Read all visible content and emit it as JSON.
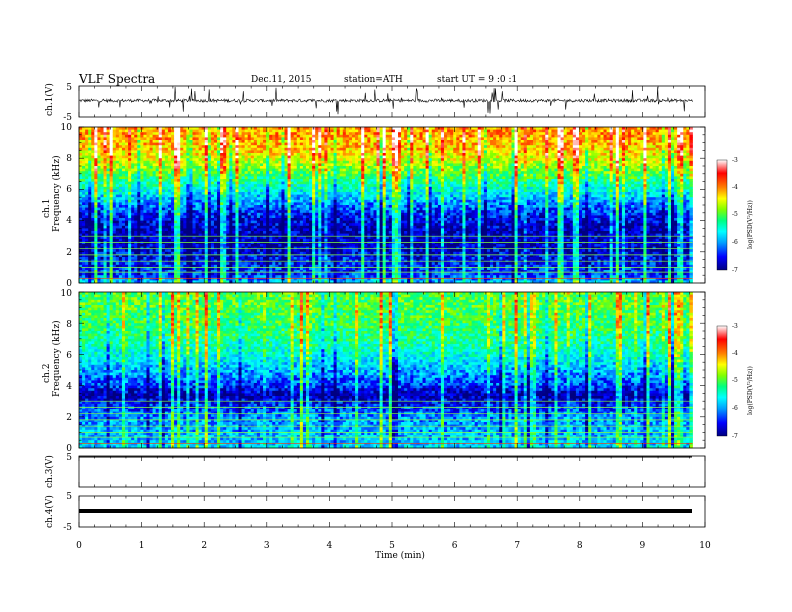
{
  "header": {
    "title": "VLF Spectra",
    "date": "Dec.11, 2015",
    "station": "station=ATH",
    "start_ut": "start UT =  9 :0 :1"
  },
  "chart_data": [
    {
      "type": "line",
      "panel": "ch1-waveform",
      "ylabel": "ch.1(V)",
      "ylim": [
        -5,
        5
      ],
      "y_ticks": [
        "5",
        "-5"
      ],
      "xlim": [
        0,
        10
      ],
      "data_end": 9.8,
      "baseline": 0.3,
      "description_values": {
        "typical_amplitude_V": 1.0,
        "peak_amplitude_V": 4.5
      }
    },
    {
      "type": "heatmap",
      "panel": "ch1-spectrogram",
      "ylabel": "ch.1",
      "ylabel2": "Frequency (kHz)",
      "ylim": [
        0,
        10
      ],
      "y_ticks": [
        "0",
        "2",
        "4",
        "6",
        "8",
        "10"
      ],
      "xlim": [
        0,
        10
      ],
      "data_end": 9.8,
      "z_profile_by_kHz": [
        [
          0,
          -5.8
        ],
        [
          0.5,
          -6.4
        ],
        [
          1.5,
          -6.6
        ],
        [
          2.5,
          -6.8
        ],
        [
          3.5,
          -6.8
        ],
        [
          4.5,
          -6.5
        ],
        [
          5.5,
          -5.9
        ],
        [
          6.5,
          -5.3
        ],
        [
          7.5,
          -4.7
        ],
        [
          8.5,
          -4.2
        ],
        [
          9.5,
          -4.0
        ],
        [
          10,
          -4.0
        ]
      ],
      "colorbar": {
        "label": "log(PSD(V²/Hz))",
        "min": -7,
        "max": -3,
        "ticks": [
          "-3",
          "-4",
          "-5",
          "-6",
          "-7"
        ]
      }
    },
    {
      "type": "heatmap",
      "panel": "ch2-spectrogram",
      "ylabel": "ch.2",
      "ylabel2": "Frequency (kHz)",
      "ylim": [
        0,
        10
      ],
      "y_ticks": [
        "0",
        "2",
        "4",
        "6",
        "8",
        "10"
      ],
      "xlim": [
        0,
        10
      ],
      "data_end": 9.8,
      "z_profile_by_kHz": [
        [
          0,
          -5.8
        ],
        [
          1,
          -6.0
        ],
        [
          2,
          -6.1
        ],
        [
          3.4,
          -6.9
        ],
        [
          4,
          -6.4
        ],
        [
          5,
          -6.0
        ],
        [
          6,
          -5.6
        ],
        [
          7,
          -5.3
        ],
        [
          8,
          -5.1
        ],
        [
          9,
          -5.0
        ],
        [
          10,
          -5.0
        ]
      ],
      "colorbar": {
        "label": "log(PSD(V²/Hz))",
        "min": -7,
        "max": -3,
        "ticks": [
          "-3",
          "-4",
          "-5",
          "-6",
          "-7"
        ]
      }
    },
    {
      "type": "line",
      "panel": "ch3-waveform",
      "ylabel": "ch.3(V)",
      "ylim": [
        -5,
        5
      ],
      "y_ticks": [
        "5"
      ],
      "xlim": [
        0,
        10
      ],
      "data_end": 9.8,
      "baseline": 5
    },
    {
      "type": "line",
      "panel": "ch4-waveform",
      "ylabel": "ch.4(V)",
      "ylim": [
        -5,
        5
      ],
      "y_ticks": [
        "5",
        "-5"
      ],
      "xlim": [
        0,
        10
      ],
      "data_end": 9.8,
      "baseline": 0
    }
  ],
  "x_axis": {
    "label": "Time (min)",
    "ticks": [
      "0",
      "1",
      "2",
      "3",
      "4",
      "5",
      "6",
      "7",
      "8",
      "9",
      "10"
    ]
  },
  "colorscale": [
    "#000080",
    "#0000ff",
    "#00a0ff",
    "#00ffff",
    "#00ff80",
    "#80ff00",
    "#ffff00",
    "#ff8000",
    "#ff0000",
    "#ffffff"
  ]
}
